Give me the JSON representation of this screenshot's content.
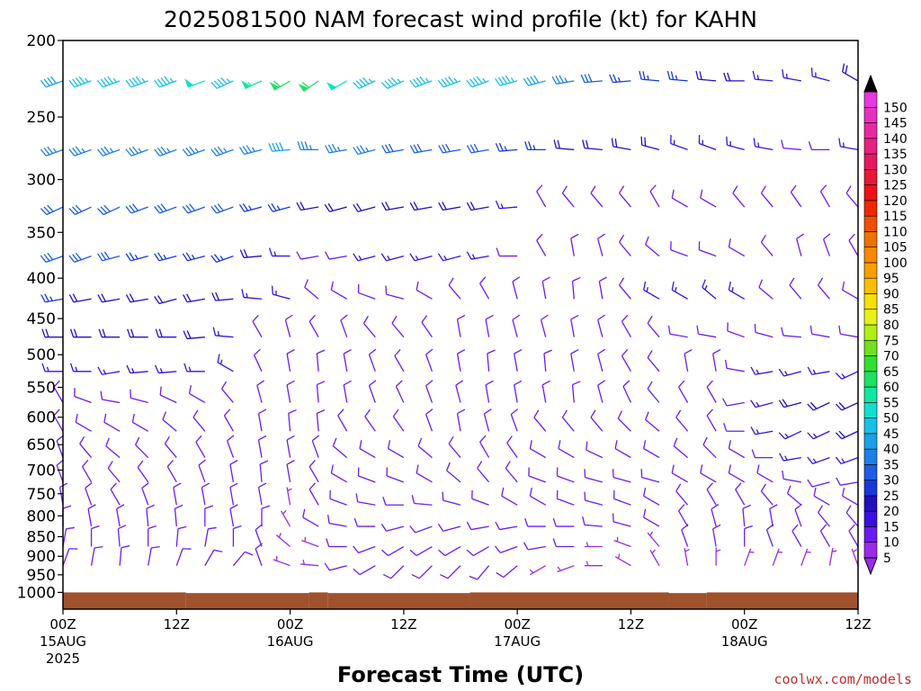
{
  "chart_data": {
    "type": "wind_barb_profile",
    "title": "2025081500 NAM forecast wind profile (kt) for KAHN",
    "xlabel": "Forecast Time (UTC)",
    "credit": "coolwx.com/models",
    "yaxis": {
      "scale": "log",
      "inverted": true,
      "unit": "hPa",
      "range": [
        200,
        1050
      ],
      "ticks": [
        200,
        250,
        300,
        350,
        400,
        450,
        500,
        550,
        600,
        650,
        700,
        750,
        800,
        850,
        900,
        950,
        1000
      ]
    },
    "xaxis": {
      "range_hours": [
        0,
        84
      ],
      "ticks": [
        {
          "hour": 0,
          "label": "00Z",
          "date": "15AUG",
          "year": "2025"
        },
        {
          "hour": 12,
          "label": "12Z"
        },
        {
          "hour": 24,
          "label": "00Z",
          "date": "16AUG"
        },
        {
          "hour": 36,
          "label": "12Z"
        },
        {
          "hour": 48,
          "label": "00Z",
          "date": "17AUG"
        },
        {
          "hour": 60,
          "label": "12Z"
        },
        {
          "hour": 72,
          "label": "00Z",
          "date": "18AUG"
        },
        {
          "hour": 84,
          "label": "12Z"
        }
      ]
    },
    "colorbar": {
      "labels": [
        "5",
        "10",
        "15",
        "20",
        "25",
        "30",
        "35",
        "40",
        "45",
        "50",
        "55",
        "60",
        "65",
        "70",
        "75",
        "80",
        "85",
        "90",
        "95",
        "100",
        "105",
        "110",
        "115",
        "120",
        "125",
        "130",
        "135",
        "140",
        "145",
        "150"
      ],
      "colors": [
        "#9a2be8",
        "#6a1cf0",
        "#3a10e0",
        "#2010c0",
        "#1838d8",
        "#1e5ce6",
        "#1f7fe8",
        "#1ba0ea",
        "#18c0e8",
        "#10e0d0",
        "#10e8a0",
        "#20e060",
        "#30e030",
        "#70e020",
        "#b0f010",
        "#e8f018",
        "#f8e000",
        "#f8c000",
        "#f8a000",
        "#f88800",
        "#f07000",
        "#f05000",
        "#f02800",
        "#f01018",
        "#e81838",
        "#e81860",
        "#e82080",
        "#e82aa0",
        "#e830c0",
        "#e838e0"
      ]
    },
    "ground": [
      {
        "hours": [
          0,
          13
        ],
        "pressure": 1000
      },
      {
        "hours": [
          13,
          26
        ],
        "pressure": 1002
      },
      {
        "hours": [
          26,
          28
        ],
        "pressure": 1000
      },
      {
        "hours": [
          28,
          43
        ],
        "pressure": 1002
      },
      {
        "hours": [
          43,
          64
        ],
        "pressure": 1000
      },
      {
        "hours": [
          64,
          68
        ],
        "pressure": 1002
      },
      {
        "hours": [
          68,
          84
        ],
        "pressure": 1000
      }
    ],
    "wind_levels_hpa": [
      225,
      275,
      325,
      375,
      425,
      475,
      525,
      575,
      625,
      675,
      725,
      775,
      825,
      875,
      925
    ],
    "wind_times_hours": [
      0,
      3,
      6,
      9,
      12,
      15,
      18,
      21,
      24,
      27,
      30,
      33,
      36,
      39,
      42,
      45,
      48,
      51,
      54,
      57,
      60,
      63,
      66,
      69,
      72,
      75,
      78,
      81,
      84
    ],
    "wind_note": "direction in degrees (from), speed in kt; one row per level, one column per forecast hour",
    "wind_dir": [
      [
        250,
        250,
        250,
        250,
        250,
        250,
        245,
        245,
        240,
        235,
        240,
        245,
        245,
        250,
        250,
        250,
        255,
        255,
        260,
        265,
        265,
        275,
        275,
        275,
        270,
        275,
        280,
        285,
        300
      ],
      [
        250,
        250,
        250,
        250,
        250,
        250,
        250,
        255,
        265,
        270,
        260,
        255,
        260,
        260,
        260,
        260,
        265,
        270,
        275,
        275,
        280,
        285,
        290,
        290,
        285,
        280,
        275,
        270,
        280
      ],
      [
        245,
        245,
        245,
        250,
        250,
        250,
        250,
        255,
        255,
        260,
        255,
        255,
        260,
        260,
        260,
        260,
        265,
        330,
        320,
        320,
        320,
        330,
        300,
        300,
        320,
        320,
        325,
        330,
        320
      ],
      [
        250,
        250,
        255,
        255,
        255,
        255,
        250,
        265,
        270,
        260,
        260,
        255,
        255,
        255,
        255,
        260,
        270,
        330,
        350,
        345,
        320,
        310,
        290,
        290,
        300,
        320,
        345,
        340,
        330
      ],
      [
        260,
        260,
        260,
        260,
        255,
        260,
        265,
        275,
        285,
        310,
        300,
        290,
        285,
        300,
        320,
        330,
        345,
        350,
        355,
        350,
        320,
        300,
        300,
        310,
        300,
        310,
        320,
        320,
        300
      ],
      [
        270,
        270,
        270,
        270,
        270,
        265,
        275,
        330,
        345,
        330,
        340,
        320,
        320,
        325,
        350,
        350,
        345,
        345,
        350,
        345,
        330,
        320,
        280,
        280,
        290,
        285,
        275,
        280,
        280
      ],
      [
        270,
        270,
        260,
        265,
        265,
        270,
        300,
        335,
        350,
        355,
        350,
        340,
        330,
        340,
        350,
        355,
        350,
        355,
        350,
        345,
        330,
        320,
        350,
        350,
        280,
        260,
        255,
        260,
        245
      ],
      [
        330,
        290,
        280,
        285,
        295,
        300,
        320,
        345,
        350,
        355,
        350,
        340,
        335,
        340,
        345,
        350,
        350,
        350,
        355,
        345,
        335,
        320,
        330,
        330,
        260,
        255,
        255,
        245,
        245
      ],
      [
        330,
        300,
        300,
        300,
        310,
        320,
        330,
        350,
        355,
        355,
        330,
        325,
        325,
        340,
        350,
        345,
        340,
        320,
        320,
        320,
        315,
        310,
        320,
        330,
        270,
        260,
        245,
        245,
        245
      ],
      [
        340,
        320,
        310,
        315,
        320,
        330,
        340,
        350,
        350,
        340,
        310,
        300,
        300,
        310,
        320,
        330,
        325,
        300,
        300,
        295,
        300,
        300,
        310,
        315,
        300,
        270,
        260,
        250,
        250
      ],
      [
        340,
        330,
        320,
        325,
        330,
        340,
        350,
        355,
        350,
        330,
        300,
        290,
        290,
        300,
        310,
        320,
        320,
        290,
        290,
        285,
        285,
        285,
        300,
        300,
        300,
        300,
        280,
        255,
        260
      ],
      [
        350,
        340,
        330,
        340,
        350,
        350,
        350,
        350,
        350,
        330,
        290,
        280,
        270,
        275,
        285,
        290,
        300,
        300,
        290,
        285,
        290,
        300,
        320,
        330,
        330,
        320,
        310,
        300,
        300
      ],
      [
        0,
        350,
        350,
        355,
        355,
        0,
        350,
        0,
        330,
        300,
        280,
        270,
        255,
        250,
        255,
        260,
        260,
        270,
        270,
        275,
        285,
        300,
        330,
        345,
        355,
        350,
        340,
        320,
        320
      ],
      [
        10,
        0,
        355,
        0,
        5,
        10,
        0,
        340,
        310,
        290,
        270,
        250,
        240,
        240,
        240,
        240,
        250,
        260,
        270,
        270,
        290,
        320,
        340,
        350,
        0,
        340,
        330,
        330,
        330
      ],
      [
        20,
        10,
        5,
        10,
        20,
        30,
        40,
        340,
        290,
        275,
        255,
        240,
        225,
        225,
        225,
        220,
        230,
        240,
        250,
        270,
        300,
        330,
        350,
        0,
        20,
        20,
        20,
        10,
        340
      ]
    ],
    "wind_spd": [
      [
        40,
        45,
        45,
        45,
        45,
        50,
        45,
        55,
        60,
        60,
        50,
        45,
        45,
        45,
        45,
        45,
        45,
        40,
        35,
        30,
        25,
        25,
        25,
        20,
        20,
        15,
        15,
        15,
        20
      ],
      [
        35,
        35,
        35,
        35,
        35,
        35,
        35,
        35,
        40,
        35,
        35,
        35,
        30,
        30,
        30,
        30,
        25,
        25,
        20,
        20,
        20,
        20,
        15,
        15,
        15,
        15,
        10,
        10,
        15
      ],
      [
        30,
        30,
        30,
        30,
        30,
        30,
        30,
        25,
        25,
        20,
        20,
        20,
        20,
        20,
        20,
        20,
        15,
        10,
        10,
        10,
        10,
        10,
        10,
        10,
        10,
        10,
        10,
        10,
        10
      ],
      [
        30,
        30,
        30,
        25,
        25,
        25,
        25,
        20,
        15,
        10,
        10,
        15,
        15,
        15,
        15,
        15,
        10,
        10,
        10,
        10,
        10,
        10,
        10,
        10,
        10,
        10,
        10,
        10,
        10
      ],
      [
        25,
        20,
        20,
        20,
        20,
        20,
        20,
        15,
        15,
        10,
        10,
        10,
        10,
        10,
        10,
        10,
        10,
        10,
        10,
        10,
        10,
        15,
        15,
        15,
        15,
        10,
        10,
        10,
        10
      ],
      [
        20,
        20,
        20,
        20,
        20,
        20,
        15,
        10,
        10,
        10,
        10,
        10,
        10,
        10,
        10,
        10,
        10,
        10,
        10,
        10,
        10,
        10,
        10,
        10,
        10,
        10,
        10,
        10,
        10
      ],
      [
        15,
        15,
        15,
        15,
        15,
        15,
        15,
        10,
        10,
        10,
        10,
        10,
        10,
        10,
        10,
        10,
        10,
        10,
        10,
        10,
        10,
        10,
        10,
        10,
        10,
        15,
        15,
        15,
        15
      ],
      [
        10,
        10,
        10,
        10,
        10,
        10,
        10,
        10,
        10,
        10,
        10,
        10,
        10,
        10,
        10,
        10,
        10,
        10,
        10,
        10,
        10,
        10,
        10,
        10,
        10,
        15,
        20,
        20,
        20
      ],
      [
        10,
        10,
        10,
        10,
        10,
        10,
        10,
        10,
        10,
        10,
        10,
        10,
        10,
        10,
        10,
        10,
        10,
        10,
        10,
        10,
        10,
        10,
        10,
        10,
        10,
        15,
        15,
        15,
        20
      ],
      [
        10,
        10,
        10,
        10,
        10,
        10,
        10,
        10,
        10,
        10,
        10,
        10,
        10,
        10,
        10,
        10,
        10,
        10,
        10,
        10,
        10,
        10,
        10,
        10,
        10,
        10,
        15,
        15,
        15
      ],
      [
        10,
        10,
        10,
        10,
        10,
        10,
        10,
        10,
        10,
        10,
        10,
        10,
        10,
        10,
        10,
        10,
        10,
        10,
        10,
        10,
        10,
        10,
        10,
        10,
        10,
        10,
        10,
        10,
        10
      ],
      [
        10,
        10,
        10,
        10,
        10,
        10,
        10,
        10,
        5,
        10,
        10,
        10,
        10,
        10,
        10,
        10,
        10,
        10,
        10,
        10,
        10,
        10,
        10,
        10,
        10,
        10,
        10,
        10,
        10
      ],
      [
        10,
        10,
        10,
        10,
        10,
        10,
        10,
        10,
        5,
        10,
        10,
        10,
        10,
        10,
        10,
        10,
        10,
        10,
        10,
        10,
        10,
        10,
        10,
        10,
        10,
        10,
        10,
        10,
        10
      ],
      [
        10,
        10,
        10,
        10,
        10,
        10,
        10,
        10,
        5,
        5,
        10,
        10,
        10,
        10,
        10,
        10,
        10,
        10,
        10,
        5,
        5,
        5,
        10,
        10,
        10,
        10,
        10,
        10,
        10
      ],
      [
        10,
        10,
        10,
        10,
        10,
        10,
        10,
        10,
        5,
        5,
        10,
        10,
        10,
        10,
        10,
        10,
        10,
        5,
        5,
        5,
        5,
        5,
        5,
        5,
        5,
        5,
        5,
        5,
        5
      ]
    ]
  }
}
